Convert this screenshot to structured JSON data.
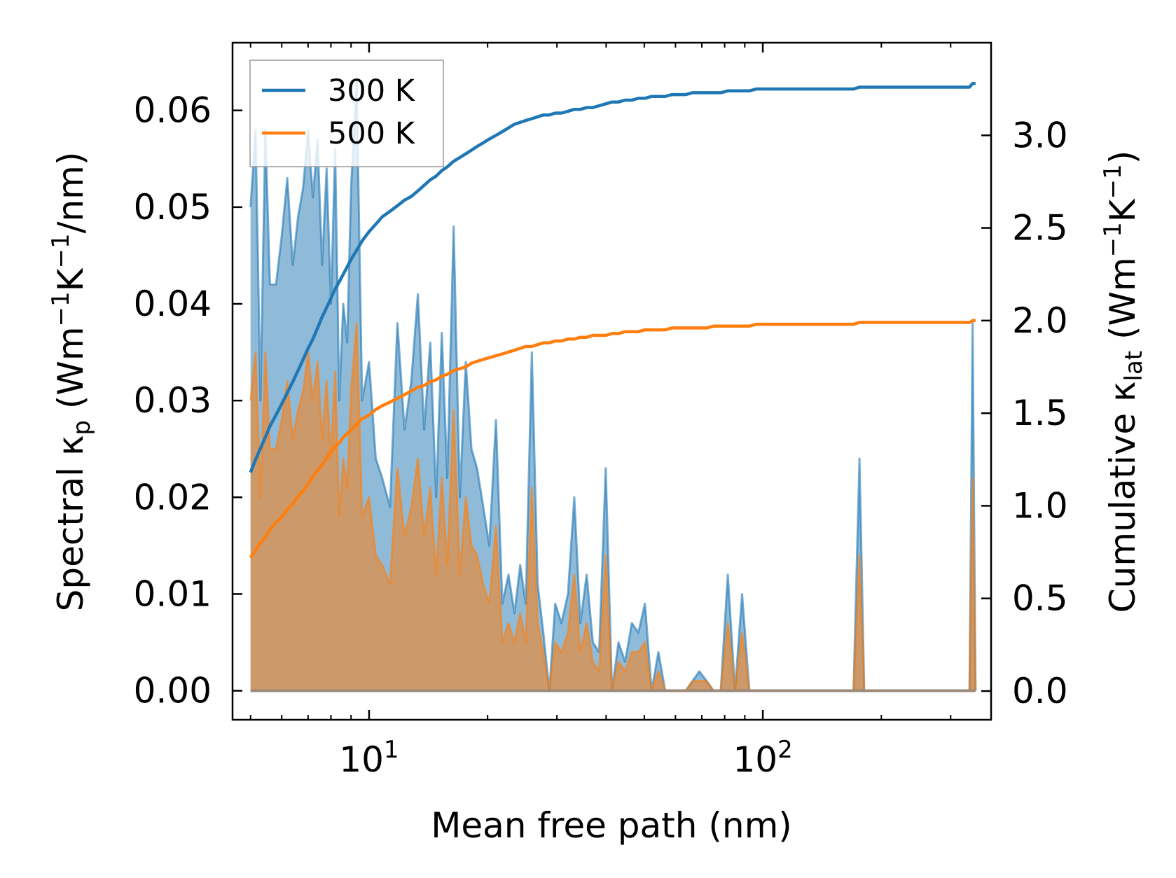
{
  "chart_data": {
    "type": "line",
    "title": "",
    "xlabel": "Mean free path (nm)",
    "xscale": "log",
    "xlim": [
      4.5,
      380
    ],
    "xticks": [
      {
        "value": 10,
        "base": "10",
        "exp": "1"
      },
      {
        "value": 100,
        "base": "10",
        "exp": "2"
      }
    ],
    "left_axis": {
      "label_parts": [
        "Spectral κ",
        "p",
        " (Wm",
        "−1",
        "K",
        "−1",
        "/nm)"
      ],
      "ylim": [
        -0.003,
        0.067
      ],
      "ticks": [
        "0.00",
        "0.01",
        "0.02",
        "0.03",
        "0.04",
        "0.05",
        "0.06"
      ],
      "tick_values": [
        0,
        0.01,
        0.02,
        0.03,
        0.04,
        0.05,
        0.06
      ]
    },
    "right_axis": {
      "label_parts": [
        "Cumulative κ",
        "lat",
        " (Wm",
        "−1",
        "K",
        "−1",
        ")"
      ],
      "ylim": [
        -0.155,
        3.5
      ],
      "ticks": [
        "0.0",
        "0.5",
        "1.0",
        "1.5",
        "2.0",
        "2.5",
        "3.0"
      ],
      "tick_values": [
        0,
        0.5,
        1.0,
        1.5,
        2.0,
        2.5,
        3.0
      ]
    },
    "legend": {
      "position": "top-left",
      "entries": [
        "300 K",
        "500 K"
      ]
    },
    "colors": {
      "300 K": "#1f77b4",
      "500 K": "#ff7f0e"
    },
    "x": [
      5.0,
      5.15,
      5.3,
      5.45,
      5.6,
      5.8,
      6.0,
      6.2,
      6.4,
      6.6,
      6.8,
      7.0,
      7.2,
      7.4,
      7.6,
      7.8,
      8.0,
      8.2,
      8.4,
      8.6,
      8.8,
      9.0,
      9.3,
      9.6,
      10.0,
      10.4,
      10.8,
      11.3,
      11.8,
      12.3,
      12.8,
      13.3,
      13.8,
      14.3,
      14.8,
      15.3,
      15.8,
      16.4,
      17.0,
      17.6,
      18.2,
      18.8,
      19.5,
      20.2,
      21.0,
      21.8,
      22.6,
      23.4,
      24.2,
      25.0,
      25.9,
      26.8,
      27.7,
      28.7,
      29.7,
      30.8,
      32.0,
      33.2,
      34.4,
      35.7,
      37.0,
      38.4,
      39.9,
      41.4,
      43.0,
      44.7,
      46.5,
      48.3,
      50.2,
      52.2,
      54.3,
      56.5,
      58.8,
      61.2,
      63.7,
      66.3,
      69.0,
      72.0,
      75.0,
      78.2,
      81.5,
      85.0,
      88.6,
      92.4,
      96.4,
      100.6,
      105.0,
      110.0,
      120.0,
      140.0,
      160.0,
      170.0,
      176.0,
      181.0,
      186.0,
      200.0,
      240.0,
      280.0,
      320.0,
      335.0,
      341.0,
      347.0
    ],
    "series": [
      {
        "name": "300 K",
        "spectral": [
          0.05,
          0.058,
          0.03,
          0.058,
          0.042,
          0.042,
          0.047,
          0.053,
          0.044,
          0.049,
          0.052,
          0.058,
          0.051,
          0.057,
          0.044,
          0.054,
          0.04,
          0.056,
          0.03,
          0.04,
          0.036,
          0.052,
          0.063,
          0.03,
          0.034,
          0.024,
          0.022,
          0.019,
          0.038,
          0.027,
          0.032,
          0.041,
          0.027,
          0.036,
          0.02,
          0.037,
          0.022,
          0.048,
          0.02,
          0.034,
          0.025,
          0.023,
          0.019,
          0.015,
          0.028,
          0.009,
          0.012,
          0.008,
          0.013,
          0.009,
          0.035,
          0.011,
          0.006,
          0.0,
          0.009,
          0.007,
          0.01,
          0.02,
          0.007,
          0.012,
          0.005,
          0.004,
          0.023,
          0.0,
          0.005,
          0.003,
          0.007,
          0.006,
          0.009,
          0.0,
          0.004,
          0.0,
          0.0,
          0.0,
          0.0,
          0.001,
          0.002,
          0.001,
          0.0,
          0.0,
          0.012,
          0.0,
          0.01,
          0.0,
          0.0,
          0.0,
          0.0,
          0.0,
          0.0,
          0.0,
          0.0,
          0.0,
          0.024,
          0.0,
          0.0,
          0.0,
          0.0,
          0.0,
          0.0,
          0.0,
          0.038,
          0.0
        ],
        "cumulative": [
          1.18,
          1.25,
          1.31,
          1.37,
          1.43,
          1.49,
          1.55,
          1.61,
          1.67,
          1.73,
          1.79,
          1.85,
          1.9,
          1.96,
          2.02,
          2.07,
          2.12,
          2.17,
          2.21,
          2.25,
          2.29,
          2.33,
          2.38,
          2.43,
          2.48,
          2.52,
          2.56,
          2.59,
          2.62,
          2.65,
          2.67,
          2.7,
          2.73,
          2.76,
          2.78,
          2.81,
          2.83,
          2.86,
          2.88,
          2.9,
          2.92,
          2.94,
          2.96,
          2.98,
          3.0,
          3.02,
          3.04,
          3.06,
          3.07,
          3.08,
          3.09,
          3.1,
          3.11,
          3.11,
          3.12,
          3.12,
          3.13,
          3.14,
          3.14,
          3.15,
          3.15,
          3.16,
          3.17,
          3.18,
          3.18,
          3.19,
          3.19,
          3.2,
          3.2,
          3.21,
          3.21,
          3.21,
          3.22,
          3.22,
          3.22,
          3.23,
          3.23,
          3.23,
          3.23,
          3.23,
          3.24,
          3.24,
          3.24,
          3.24,
          3.25,
          3.25,
          3.25,
          3.25,
          3.25,
          3.25,
          3.25,
          3.25,
          3.26,
          3.26,
          3.26,
          3.26,
          3.26,
          3.26,
          3.26,
          3.26,
          3.28,
          3.28
        ]
      },
      {
        "name": "500 K",
        "spectral": [
          0.03,
          0.035,
          0.02,
          0.035,
          0.025,
          0.025,
          0.028,
          0.032,
          0.026,
          0.029,
          0.031,
          0.035,
          0.03,
          0.034,
          0.026,
          0.032,
          0.024,
          0.033,
          0.018,
          0.024,
          0.021,
          0.031,
          0.038,
          0.018,
          0.02,
          0.014,
          0.013,
          0.011,
          0.023,
          0.016,
          0.019,
          0.024,
          0.016,
          0.021,
          0.012,
          0.022,
          0.013,
          0.029,
          0.012,
          0.02,
          0.015,
          0.014,
          0.011,
          0.009,
          0.017,
          0.005,
          0.007,
          0.005,
          0.008,
          0.005,
          0.021,
          0.007,
          0.004,
          0.0,
          0.005,
          0.004,
          0.006,
          0.012,
          0.004,
          0.007,
          0.003,
          0.002,
          0.014,
          0.0,
          0.003,
          0.002,
          0.004,
          0.004,
          0.005,
          0.0,
          0.002,
          0.0,
          0.0,
          0.0,
          0.0,
          0.001,
          0.001,
          0.001,
          0.0,
          0.0,
          0.007,
          0.0,
          0.006,
          0.0,
          0.0,
          0.0,
          0.0,
          0.0,
          0.0,
          0.0,
          0.0,
          0.0,
          0.014,
          0.0,
          0.0,
          0.0,
          0.0,
          0.0,
          0.0,
          0.0,
          0.022,
          0.0
        ],
        "cumulative": [
          0.72,
          0.76,
          0.8,
          0.83,
          0.87,
          0.91,
          0.94,
          0.98,
          1.01,
          1.05,
          1.08,
          1.12,
          1.16,
          1.19,
          1.22,
          1.26,
          1.29,
          1.32,
          1.34,
          1.37,
          1.39,
          1.41,
          1.44,
          1.47,
          1.49,
          1.52,
          1.54,
          1.56,
          1.58,
          1.6,
          1.62,
          1.64,
          1.65,
          1.67,
          1.68,
          1.7,
          1.71,
          1.73,
          1.74,
          1.75,
          1.77,
          1.78,
          1.79,
          1.8,
          1.81,
          1.82,
          1.83,
          1.84,
          1.85,
          1.86,
          1.86,
          1.87,
          1.88,
          1.88,
          1.89,
          1.89,
          1.9,
          1.9,
          1.91,
          1.91,
          1.92,
          1.92,
          1.92,
          1.93,
          1.93,
          1.94,
          1.94,
          1.94,
          1.95,
          1.95,
          1.95,
          1.95,
          1.96,
          1.96,
          1.96,
          1.96,
          1.96,
          1.96,
          1.97,
          1.97,
          1.97,
          1.97,
          1.97,
          1.97,
          1.98,
          1.98,
          1.98,
          1.98,
          1.98,
          1.98,
          1.98,
          1.98,
          1.99,
          1.99,
          1.99,
          1.99,
          1.99,
          1.99,
          1.99,
          1.99,
          2.0,
          2.0
        ]
      }
    ]
  }
}
